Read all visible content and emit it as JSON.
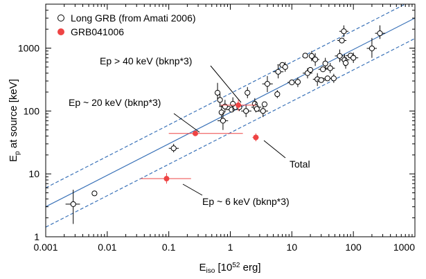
{
  "chart_data": {
    "type": "scatter",
    "x_scale": "log",
    "y_scale": "log",
    "xlim": [
      0.001,
      1000
    ],
    "ylim": [
      1,
      5000
    ],
    "grid": false,
    "legend_position": "top-left",
    "x_tick_labels": [
      "0.001",
      "0.01",
      "0.1",
      "1",
      "10",
      "100",
      "1000"
    ],
    "y_tick_labels": [
      "1",
      "10",
      "100",
      "1000"
    ],
    "xlabel": {
      "main": "E",
      "sub": "iso",
      "rest": " [10",
      "sup": "52",
      "end": " erg]"
    },
    "ylabel": {
      "main": "E",
      "sub": "p",
      "rest": " at source [keV]"
    },
    "legend": [
      {
        "label": "Long GRB (from Amati 2006)",
        "marker": "open-circle",
        "color": "#000000"
      },
      {
        "label": "GRB041006",
        "marker": "filled-circle",
        "color": "#ee4444"
      }
    ],
    "series": [
      {
        "name": "Long GRB (from Amati 2006)",
        "marker": "open-circle",
        "color": "#000000",
        "points": [
          {
            "x": 0.0028,
            "y": 3.3,
            "xlo": 0.0021,
            "xhi": 0.0036,
            "ylo": 1.6,
            "yhi": 5.6
          },
          {
            "x": 0.0062,
            "y": 4.9
          },
          {
            "x": 0.12,
            "y": 25.5,
            "xlo": 0.1,
            "xhi": 0.145,
            "ylo": 22,
            "yhi": 30
          },
          {
            "x": 0.62,
            "y": 195,
            "ylo": 150,
            "yhi": 280
          },
          {
            "x": 0.68,
            "y": 150,
            "ylo": 120,
            "yhi": 190
          },
          {
            "x": 0.72,
            "y": 95,
            "ylo": 70,
            "yhi": 125
          },
          {
            "x": 0.76,
            "y": 70,
            "xlo": 0.62,
            "xhi": 0.92,
            "ylo": 50,
            "yhi": 95
          },
          {
            "x": 0.82,
            "y": 118,
            "xlo": 0.66,
            "xhi": 1.0,
            "ylo": 95,
            "yhi": 150
          },
          {
            "x": 1.05,
            "y": 105,
            "xlo": 0.85,
            "xhi": 1.3
          },
          {
            "x": 1.1,
            "y": 130,
            "ylo": 100,
            "yhi": 165
          },
          {
            "x": 1.4,
            "y": 115,
            "ylo": 100,
            "yhi": 135
          },
          {
            "x": 1.8,
            "y": 100,
            "xlo": 1.5,
            "xhi": 2.2,
            "ylo": 80,
            "yhi": 125
          },
          {
            "x": 1.9,
            "y": 195,
            "ylo": 160,
            "yhi": 240
          },
          {
            "x": 2.5,
            "y": 130,
            "ylo": 105,
            "yhi": 160
          },
          {
            "x": 2.6,
            "y": 115,
            "xlo": 2.2,
            "xhi": 3.2,
            "ylo": 95,
            "yhi": 140
          },
          {
            "x": 2.7,
            "y": 108
          },
          {
            "x": 3.4,
            "y": 100,
            "xlo": 2.8,
            "xhi": 4.1,
            "ylo": 80,
            "yhi": 125
          },
          {
            "x": 3.6,
            "y": 128
          },
          {
            "x": 4.0,
            "y": 270,
            "xlo": 3.3,
            "xhi": 4.9,
            "ylo": 200,
            "yhi": 360
          },
          {
            "x": 5.8,
            "y": 185,
            "ylo": 160,
            "yhi": 215
          },
          {
            "x": 6.0,
            "y": 420,
            "xlo": 5.0,
            "xhi": 7.3,
            "ylo": 330,
            "yhi": 530
          },
          {
            "x": 7.0,
            "y": 540,
            "xlo": 5.8,
            "xhi": 8.4
          },
          {
            "x": 7.8,
            "y": 500,
            "ylo": 420,
            "yhi": 600
          },
          {
            "x": 10.0,
            "y": 285,
            "xlo": 8.5,
            "xhi": 11.8
          },
          {
            "x": 12.5,
            "y": 290,
            "ylo": 240,
            "yhi": 340
          },
          {
            "x": 16.5,
            "y": 760
          },
          {
            "x": 18.0,
            "y": 400,
            "xlo": 15.0,
            "xhi": 21.5,
            "ylo": 330,
            "yhi": 480
          },
          {
            "x": 20.0,
            "y": 450
          },
          {
            "x": 21.0,
            "y": 750,
            "ylo": 620,
            "yhi": 900
          },
          {
            "x": 24.0,
            "y": 660,
            "xlo": 20.5,
            "xhi": 28.0,
            "ylo": 520,
            "yhi": 830
          },
          {
            "x": 26.0,
            "y": 320,
            "xlo": 22.0,
            "xhi": 30.5,
            "ylo": 250,
            "yhi": 400
          },
          {
            "x": 30.0,
            "y": 310,
            "xlo": 25.5,
            "xhi": 35.5
          },
          {
            "x": 32.0,
            "y": 460,
            "xlo": 27.0,
            "xhi": 38.0
          },
          {
            "x": 35.0,
            "y": 570,
            "ylo": 460,
            "yhi": 700
          },
          {
            "x": 38.0,
            "y": 330,
            "xlo": 32.0,
            "xhi": 45.0
          },
          {
            "x": 42.0,
            "y": 480,
            "xlo": 35.0,
            "xhi": 50.0,
            "ylo": 400,
            "yhi": 580
          },
          {
            "x": 48.0,
            "y": 330,
            "ylo": 280,
            "yhi": 390
          },
          {
            "x": 60.0,
            "y": 750,
            "xlo": 50.0,
            "xhi": 72.0,
            "ylo": 600,
            "yhi": 950
          },
          {
            "x": 65.0,
            "y": 1320,
            "xlo": 55.0,
            "xhi": 77.0
          },
          {
            "x": 70.0,
            "y": 1850,
            "xlo": 59.0,
            "xhi": 83.0,
            "ylo": 1500,
            "yhi": 2300
          },
          {
            "x": 72.0,
            "y": 650,
            "xlo": 60.0,
            "xhi": 86.0,
            "ylo": 520,
            "yhi": 800
          },
          {
            "x": 75.0,
            "y": 580,
            "ylo": 470,
            "yhi": 720
          },
          {
            "x": 90.0,
            "y": 760,
            "xlo": 75.0,
            "xhi": 107.0
          },
          {
            "x": 100.0,
            "y": 700,
            "xlo": 84.0,
            "xhi": 120.0,
            "ylo": 580,
            "yhi": 850
          },
          {
            "x": 200.0,
            "y": 990,
            "xlo": 165.0,
            "xhi": 240.0,
            "ylo": 700,
            "yhi": 1450
          },
          {
            "x": 270.0,
            "y": 1720,
            "xlo": 225.0,
            "xhi": 330.0,
            "ylo": 1400,
            "yhi": 2300
          }
        ]
      },
      {
        "name": "GRB041006",
        "marker": "filled-circle",
        "color": "#ee4444",
        "points": [
          {
            "x": 0.092,
            "y": 8.4,
            "xlo": 0.035,
            "xhi": 0.23,
            "ylo": 7.0,
            "yhi": 10.3
          },
          {
            "x": 0.27,
            "y": 44,
            "xlo": 0.1,
            "xhi": 1.6,
            "ylo": 40,
            "yhi": 48
          },
          {
            "x": 1.35,
            "y": 124,
            "xlo": 0.7,
            "xhi": 2.6,
            "ylo": 100,
            "yhi": 150
          },
          {
            "x": 2.6,
            "y": 38,
            "xlo": 2.3,
            "xhi": 2.9,
            "ylo": 33,
            "yhi": 44
          }
        ]
      }
    ],
    "lines": [
      {
        "kind": "best-fit",
        "style": "solid",
        "color": "#3a72b8",
        "slope": 0.5,
        "y_at_x1": 95
      },
      {
        "kind": "upper-bound",
        "style": "dashed",
        "color": "#3a72b8",
        "slope": 0.5,
        "y_at_x1": 190
      },
      {
        "kind": "lower-bound",
        "style": "dashed",
        "color": "#3a72b8",
        "slope": 0.5,
        "y_at_x1": 45
      }
    ],
    "annotations": [
      {
        "text": "Ep > 40 keV (bknp*3)",
        "point_x": 1.35,
        "point_y": 124
      },
      {
        "text": "Ep ~ 20 keV (bknp*3)",
        "point_x": 0.27,
        "point_y": 44
      },
      {
        "text": "Total",
        "point_x": 2.6,
        "point_y": 38
      },
      {
        "text": "Ep ~ 6 keV (bknp*3)",
        "point_x": 0.092,
        "point_y": 8.4
      }
    ]
  }
}
